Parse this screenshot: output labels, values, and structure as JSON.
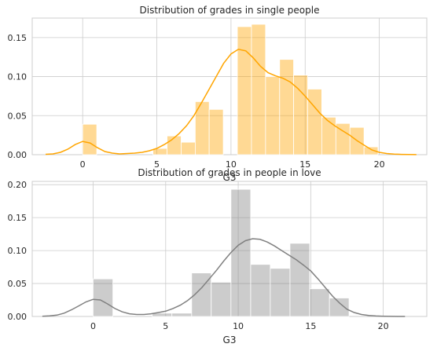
{
  "chart_data": [
    {
      "type": "bar",
      "title": "Distribution of grades in  single people",
      "xlabel": "G3",
      "ylabel": "",
      "xlim": [
        -3.4,
        23.2
      ],
      "ylim": [
        0,
        0.175
      ],
      "xticks": [
        0,
        5,
        10,
        15,
        20
      ],
      "yticks": [
        0.0,
        0.05,
        0.1,
        0.15
      ],
      "ytick_labels": [
        "0.00",
        "0.05",
        "0.10",
        "0.15"
      ],
      "grid": true,
      "bar_color": "#ffa500",
      "bar_opacity": 0.42,
      "line_color": "#ffa500",
      "bins": [
        {
          "x0": 0,
          "x1": 0.95,
          "value": 0.039
        },
        {
          "x0": 4.74,
          "x1": 5.69,
          "value": 0.008
        },
        {
          "x0": 5.69,
          "x1": 6.64,
          "value": 0.024
        },
        {
          "x0": 6.64,
          "x1": 7.59,
          "value": 0.016
        },
        {
          "x0": 7.59,
          "x1": 8.53,
          "value": 0.068
        },
        {
          "x0": 8.53,
          "x1": 9.48,
          "value": 0.058
        },
        {
          "x0": 10.43,
          "x1": 11.38,
          "value": 0.164
        },
        {
          "x0": 11.38,
          "x1": 12.33,
          "value": 0.167
        },
        {
          "x0": 12.33,
          "x1": 13.28,
          "value": 0.1
        },
        {
          "x0": 13.28,
          "x1": 14.22,
          "value": 0.122
        },
        {
          "x0": 14.22,
          "x1": 15.17,
          "value": 0.102
        },
        {
          "x0": 15.17,
          "x1": 16.12,
          "value": 0.084
        },
        {
          "x0": 16.12,
          "x1": 17.07,
          "value": 0.048
        },
        {
          "x0": 17.07,
          "x1": 18.02,
          "value": 0.04
        },
        {
          "x0": 18.02,
          "x1": 18.97,
          "value": 0.035
        },
        {
          "x0": 18.97,
          "x1": 19.91,
          "value": 0.01
        }
      ],
      "kde": {
        "x": [
          -2.5,
          -2,
          -1.5,
          -1,
          -0.5,
          0,
          0.5,
          1,
          1.5,
          2,
          2.5,
          3,
          3.5,
          4,
          4.5,
          5,
          5.5,
          6,
          6.5,
          7,
          7.5,
          8,
          8.5,
          9,
          9.5,
          10,
          10.5,
          11,
          11.5,
          12,
          12.5,
          13,
          13.5,
          14,
          14.5,
          15,
          15.5,
          16,
          16.5,
          17,
          17.5,
          18,
          18.5,
          19,
          19.5,
          20,
          20.5,
          21,
          21.5,
          22,
          22.5
        ],
        "y": [
          0.0005,
          0.001,
          0.003,
          0.007,
          0.013,
          0.017,
          0.015,
          0.009,
          0.004,
          0.002,
          0.001,
          0.0015,
          0.002,
          0.003,
          0.005,
          0.008,
          0.013,
          0.019,
          0.027,
          0.037,
          0.05,
          0.066,
          0.083,
          0.1,
          0.117,
          0.129,
          0.135,
          0.133,
          0.124,
          0.113,
          0.105,
          0.101,
          0.098,
          0.093,
          0.085,
          0.075,
          0.064,
          0.053,
          0.044,
          0.037,
          0.031,
          0.025,
          0.018,
          0.012,
          0.006,
          0.003,
          0.0015,
          0.0008,
          0.0004,
          0.0002,
          0.0001
        ]
      }
    },
    {
      "type": "bar",
      "title": "Distribution of grades in people in love",
      "xlabel": "G3",
      "ylabel": "",
      "xlim": [
        -4.2,
        23.0
      ],
      "ylim": [
        0,
        0.205
      ],
      "xticks": [
        0,
        5,
        10,
        15,
        20
      ],
      "yticks": [
        0.0,
        0.05,
        0.1,
        0.15,
        0.2
      ],
      "ytick_labels": [
        "0.00",
        "0.05",
        "0.10",
        "0.15",
        "0.20"
      ],
      "grid": true,
      "bar_color": "#808080",
      "bar_opacity": 0.4,
      "line_color": "#808080",
      "bins": [
        {
          "x0": 0,
          "x1": 1.36,
          "value": 0.057
        },
        {
          "x0": 4.07,
          "x1": 5.43,
          "value": 0.005
        },
        {
          "x0": 5.43,
          "x1": 6.79,
          "value": 0.005
        },
        {
          "x0": 6.79,
          "x1": 8.14,
          "value": 0.066
        },
        {
          "x0": 8.14,
          "x1": 9.5,
          "value": 0.052
        },
        {
          "x0": 9.5,
          "x1": 10.86,
          "value": 0.193
        },
        {
          "x0": 10.86,
          "x1": 12.21,
          "value": 0.079
        },
        {
          "x0": 12.21,
          "x1": 13.57,
          "value": 0.073
        },
        {
          "x0": 13.57,
          "x1": 14.93,
          "value": 0.111
        },
        {
          "x0": 14.93,
          "x1": 16.29,
          "value": 0.042
        },
        {
          "x0": 16.29,
          "x1": 17.64,
          "value": 0.028
        }
      ],
      "kde": {
        "x": [
          -3.5,
          -3,
          -2.5,
          -2,
          -1.5,
          -1,
          -0.5,
          0,
          0.5,
          1,
          1.5,
          2,
          2.5,
          3,
          3.5,
          4,
          4.5,
          5,
          5.5,
          6,
          6.5,
          7,
          7.5,
          8,
          8.5,
          9,
          9.5,
          10,
          10.5,
          11,
          11.5,
          12,
          12.5,
          13,
          13.5,
          14,
          14.5,
          15,
          15.5,
          16,
          16.5,
          17,
          17.5,
          18,
          18.5,
          19,
          19.5,
          20,
          20.5,
          21,
          21.5
        ],
        "y": [
          0.0003,
          0.0008,
          0.002,
          0.005,
          0.01,
          0.016,
          0.022,
          0.026,
          0.025,
          0.019,
          0.012,
          0.007,
          0.004,
          0.003,
          0.003,
          0.004,
          0.006,
          0.008,
          0.012,
          0.017,
          0.024,
          0.033,
          0.044,
          0.057,
          0.07,
          0.084,
          0.097,
          0.108,
          0.115,
          0.118,
          0.117,
          0.113,
          0.107,
          0.1,
          0.093,
          0.086,
          0.078,
          0.069,
          0.057,
          0.044,
          0.031,
          0.02,
          0.011,
          0.006,
          0.003,
          0.0015,
          0.0007,
          0.0003,
          0.0001,
          5e-05,
          2e-05
        ]
      }
    }
  ]
}
